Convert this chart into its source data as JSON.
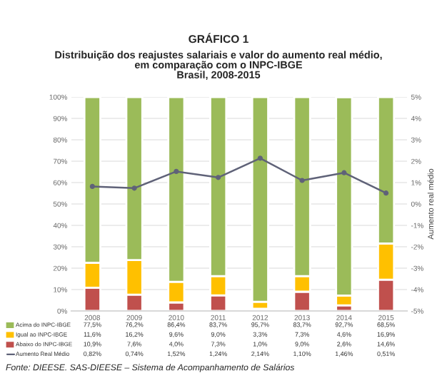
{
  "chart_data": {
    "type": "bar",
    "stacked": true,
    "title": "GRÁFICO 1",
    "subtitle": "Distribuição dos reajustes salariais e valor do aumento real médio,\nem comparação com o INPC-IBGE\nBrasil, 2008-2015",
    "y2label": "Aumento real médio",
    "categories": [
      "2008",
      "2009",
      "2010",
      "2011",
      "2012",
      "2013",
      "2014",
      "2015"
    ],
    "series": [
      {
        "name": "Abaixo do INPC-IBGE",
        "color": "#c0504d",
        "values": [
          10.9,
          7.6,
          4.0,
          7.3,
          1.0,
          9.0,
          2.6,
          14.6
        ],
        "value_labels": [
          "10,9%",
          "7,6%",
          "4,0%",
          "7,3%",
          "1,0%",
          "9,0%",
          "2,6%",
          "14,6%"
        ]
      },
      {
        "name": "Igual ao INPC-IBGE",
        "color": "#ffc000",
        "values": [
          11.6,
          16.2,
          9.6,
          9.0,
          3.3,
          7.3,
          4.6,
          16.9
        ],
        "value_labels": [
          "11,6%",
          "16,2%",
          "9,6%",
          "9,0%",
          "3,3%",
          "7,3%",
          "4,6%",
          "16,9%"
        ]
      },
      {
        "name": "Acima do INPC-IBGE",
        "color": "#9bbb59",
        "values": [
          77.5,
          76.2,
          86.4,
          83.7,
          95.7,
          83.7,
          92.7,
          68.5
        ],
        "value_labels": [
          "77,5%",
          "76,2%",
          "86,4%",
          "83,7%",
          "95,7%",
          "83,7%",
          "92,7%",
          "68,5%"
        ]
      },
      {
        "name": "Aumento Real Médio",
        "type": "line",
        "axis": "y2",
        "color": "#5f6278",
        "marker": "circle",
        "values": [
          0.82,
          0.74,
          1.52,
          1.24,
          2.14,
          1.1,
          1.46,
          0.51
        ],
        "value_labels": [
          "0,82%",
          "0,74%",
          "1,52%",
          "1,24%",
          "2,14%",
          "1,10%",
          "1,46%",
          "0,51%"
        ]
      }
    ],
    "ylim": [
      0,
      100
    ],
    "yticks": [
      {
        "value": 0,
        "label": "0%"
      },
      {
        "value": 10,
        "label": "10%"
      },
      {
        "value": 20,
        "label": "20%"
      },
      {
        "value": 30,
        "label": "30%"
      },
      {
        "value": 40,
        "label": "40%"
      },
      {
        "value": 50,
        "label": "50%"
      },
      {
        "value": 60,
        "label": "60%"
      },
      {
        "value": 70,
        "label": "70%"
      },
      {
        "value": 80,
        "label": "80%"
      },
      {
        "value": 90,
        "label": "90%"
      },
      {
        "value": 100,
        "label": "100%"
      }
    ],
    "y2lim": [
      -5,
      5
    ],
    "y2ticks": [
      {
        "value": -5,
        "label": "-5%"
      },
      {
        "value": -4,
        "label": "-4%"
      },
      {
        "value": -3,
        "label": "-3%"
      },
      {
        "value": -2,
        "label": "-2%"
      },
      {
        "value": -1,
        "label": "-1%"
      },
      {
        "value": 0,
        "label": "0%"
      },
      {
        "value": 1,
        "label": "1%"
      },
      {
        "value": 2,
        "label": "2%"
      },
      {
        "value": 3,
        "label": "3%"
      },
      {
        "value": 4,
        "label": "4%"
      },
      {
        "value": 5,
        "label": "5%"
      }
    ],
    "grid": "y",
    "legend": "bottom",
    "annotations": [
      "Fonte: DIEESE. SAS-DIEESE – Sistema de Acompanhamento de Salários"
    ]
  }
}
